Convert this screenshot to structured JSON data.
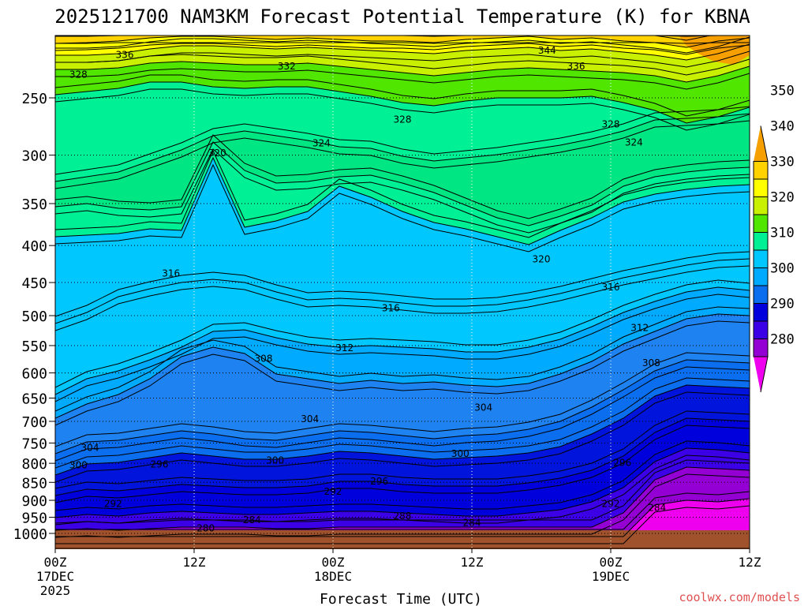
{
  "chart_data": {
    "type": "contour",
    "title": "2025121700 NAM3KM Forecast Potential Temperature (K) for KBNA",
    "xlabel": "Forecast Time (UTC)",
    "ylabel": "",
    "x_ticks": [
      {
        "hour": 0,
        "lines": [
          "00Z",
          "17DEC",
          "2025"
        ]
      },
      {
        "hour": 12,
        "lines": [
          "12Z"
        ]
      },
      {
        "hour": 24,
        "lines": [
          "00Z",
          "18DEC"
        ]
      },
      {
        "hour": 36,
        "lines": [
          "12Z"
        ]
      },
      {
        "hour": 48,
        "lines": [
          "00Z",
          "19DEC"
        ]
      },
      {
        "hour": 60,
        "lines": [
          "12Z"
        ]
      }
    ],
    "xlim": [
      0,
      60
    ],
    "y_ticks": [
      "250",
      "300",
      "350",
      "400",
      "450",
      "500",
      "550",
      "600",
      "650",
      "700",
      "750",
      "800",
      "850",
      "900",
      "950",
      "1000"
    ],
    "ylim": [
      1000,
      205
    ],
    "y_scale": "log",
    "grid": true,
    "colorbar": {
      "labels": [
        "280",
        "290",
        "300",
        "310",
        "320",
        "330",
        "340",
        "350"
      ],
      "colors": [
        "#ee00ee",
        "#9400d3",
        "#3c00e6",
        "#0000dc",
        "#0a6eee",
        "#00aaff",
        "#00c8ff",
        "#00f096",
        "#50e600",
        "#c8f000",
        "#ffff00",
        "#ffd200",
        "#f5a000"
      ]
    },
    "contour_labels": [
      {
        "text": "336",
        "hour": 6.0,
        "p": 218
      },
      {
        "text": "328",
        "hour": 2.0,
        "p": 232
      },
      {
        "text": "332",
        "hour": 20.0,
        "p": 226
      },
      {
        "text": "344",
        "hour": 42.5,
        "p": 215
      },
      {
        "text": "336",
        "hour": 45.0,
        "p": 226
      },
      {
        "text": "328",
        "hour": 30.0,
        "p": 268
      },
      {
        "text": "324",
        "hour": 23.0,
        "p": 289
      },
      {
        "text": "320",
        "hour": 14.0,
        "p": 298
      },
      {
        "text": "328",
        "hour": 48.0,
        "p": 272
      },
      {
        "text": "324",
        "hour": 50.0,
        "p": 288
      },
      {
        "text": "320",
        "hour": 42.0,
        "p": 418
      },
      {
        "text": "316",
        "hour": 10.0,
        "p": 437
      },
      {
        "text": "316",
        "hour": 29.0,
        "p": 488
      },
      {
        "text": "316",
        "hour": 48.0,
        "p": 457
      },
      {
        "text": "312",
        "hour": 25.0,
        "p": 554
      },
      {
        "text": "312",
        "hour": 50.5,
        "p": 520
      },
      {
        "text": "308",
        "hour": 18.0,
        "p": 573
      },
      {
        "text": "308",
        "hour": 51.5,
        "p": 581
      },
      {
        "text": "304",
        "hour": 22.0,
        "p": 695
      },
      {
        "text": "304",
        "hour": 37.0,
        "p": 670
      },
      {
        "text": "304",
        "hour": 3.0,
        "p": 761
      },
      {
        "text": "300",
        "hour": 2.0,
        "p": 805
      },
      {
        "text": "300",
        "hour": 19.0,
        "p": 793
      },
      {
        "text": "300",
        "hour": 35.0,
        "p": 776
      },
      {
        "text": "296",
        "hour": 9.0,
        "p": 803
      },
      {
        "text": "296",
        "hour": 28.0,
        "p": 847
      },
      {
        "text": "296",
        "hour": 49.0,
        "p": 799
      },
      {
        "text": "292",
        "hour": 5.0,
        "p": 910
      },
      {
        "text": "292",
        "hour": 24.0,
        "p": 875
      },
      {
        "text": "292",
        "hour": 48.0,
        "p": 910
      },
      {
        "text": "288",
        "hour": 30.0,
        "p": 946
      },
      {
        "text": "284",
        "hour": 17.0,
        "p": 958
      },
      {
        "text": "284",
        "hour": 36.0,
        "p": 967
      },
      {
        "text": "284",
        "hour": 52.0,
        "p": 922
      },
      {
        "text": "280",
        "hour": 13.0,
        "p": 984
      }
    ]
  },
  "watermark": "coolwx.com/models"
}
